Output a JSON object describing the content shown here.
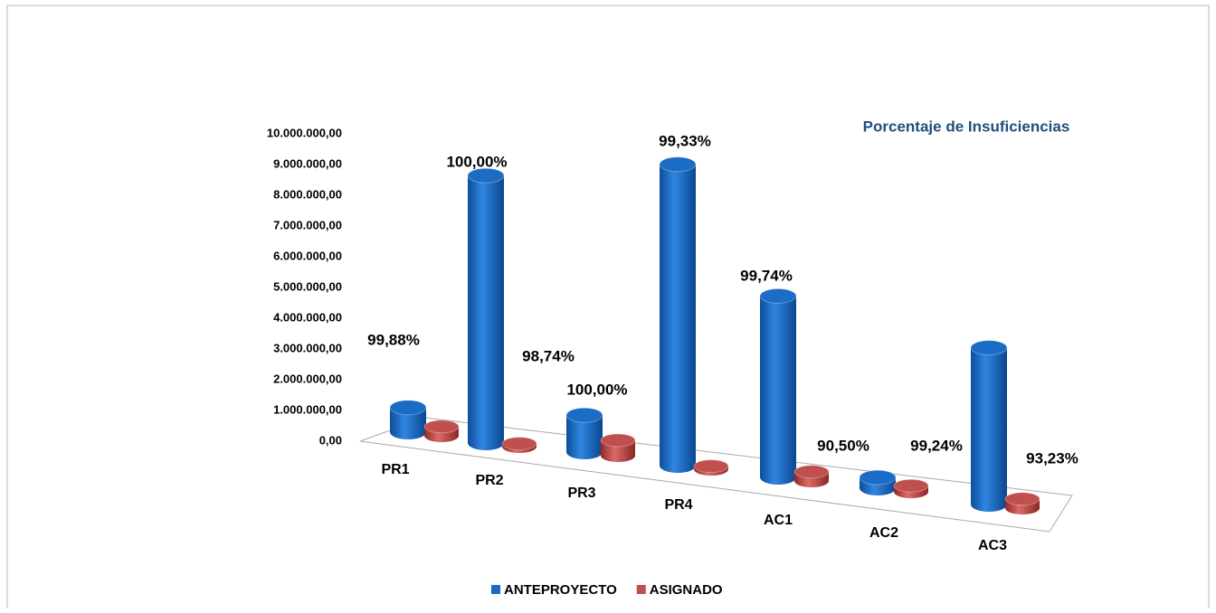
{
  "chart_data": {
    "type": "bar3d",
    "title": "Porcentaje de Insuficiencias",
    "categories": [
      "PR1",
      "PR2",
      "PR3",
      "PR4",
      "AC1",
      "AC2",
      "AC3"
    ],
    "series": [
      {
        "name": "ANTEPROYECTO",
        "color": "#1b6cc4",
        "values": [
          800000,
          8700000,
          1200000,
          9800000,
          5900000,
          350000,
          5100000
        ]
      },
      {
        "name": "ASIGNADO",
        "color": "#c0504d",
        "values": [
          300000,
          100000,
          500000,
          100000,
          300000,
          200000,
          300000
        ]
      }
    ],
    "ylim": [
      0,
      10000000
    ],
    "yticks": [
      {
        "value": 0,
        "label": "0,00"
      },
      {
        "value": 1000000,
        "label": "1.000.000,00"
      },
      {
        "value": 2000000,
        "label": "2.000.000,00"
      },
      {
        "value": 3000000,
        "label": "3.000.000,00"
      },
      {
        "value": 4000000,
        "label": "4.000.000,00"
      },
      {
        "value": 5000000,
        "label": "5.000.000,00"
      },
      {
        "value": 6000000,
        "label": "6.000.000,00"
      },
      {
        "value": 7000000,
        "label": "7.000.000,00"
      },
      {
        "value": 8000000,
        "label": "8.000.000,00"
      },
      {
        "value": 9000000,
        "label": "9.000.000,00"
      },
      {
        "value": 10000000,
        "label": "10.000.000,00"
      }
    ],
    "annotations": [
      "99,88%",
      "100,00%",
      "98,74%",
      "100,00%",
      "99,33%",
      "99,74%",
      "90,50%",
      "99,24%",
      "93,23%"
    ],
    "legend": "bottom"
  }
}
